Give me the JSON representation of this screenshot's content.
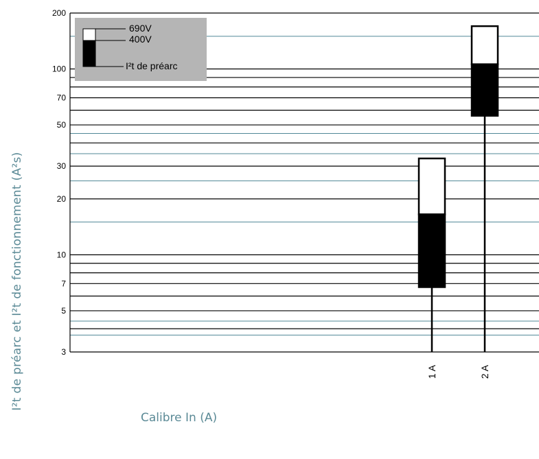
{
  "chart_data": {
    "type": "range-bar",
    "title": "",
    "xlabel": "Calibre In (A)",
    "ylabel": "I²t de préarc et I²t de fonctionnement (A²s)",
    "yscale": "log",
    "ylim": [
      3,
      200
    ],
    "yticks": [
      3,
      5,
      7,
      10,
      20,
      30,
      50,
      70,
      100,
      200
    ],
    "categories": [
      "1 A",
      "2 A"
    ],
    "series": [
      {
        "name": "690V",
        "values": [
          33,
          170
        ]
      },
      {
        "name": "400V",
        "values": [
          16.5,
          106
        ]
      },
      {
        "name": "I²t de préarc",
        "values": [
          6.7,
          56
        ]
      }
    ],
    "grid": true,
    "legend_position": "top-left",
    "colors": {
      "gridline": "#000000",
      "gridline_teal": "#4f8796",
      "legend_box": "#b5b5b5",
      "axis_title": "#5b8a96",
      "fill_690V": "#ffffff",
      "fill_400V": "#000000"
    }
  }
}
